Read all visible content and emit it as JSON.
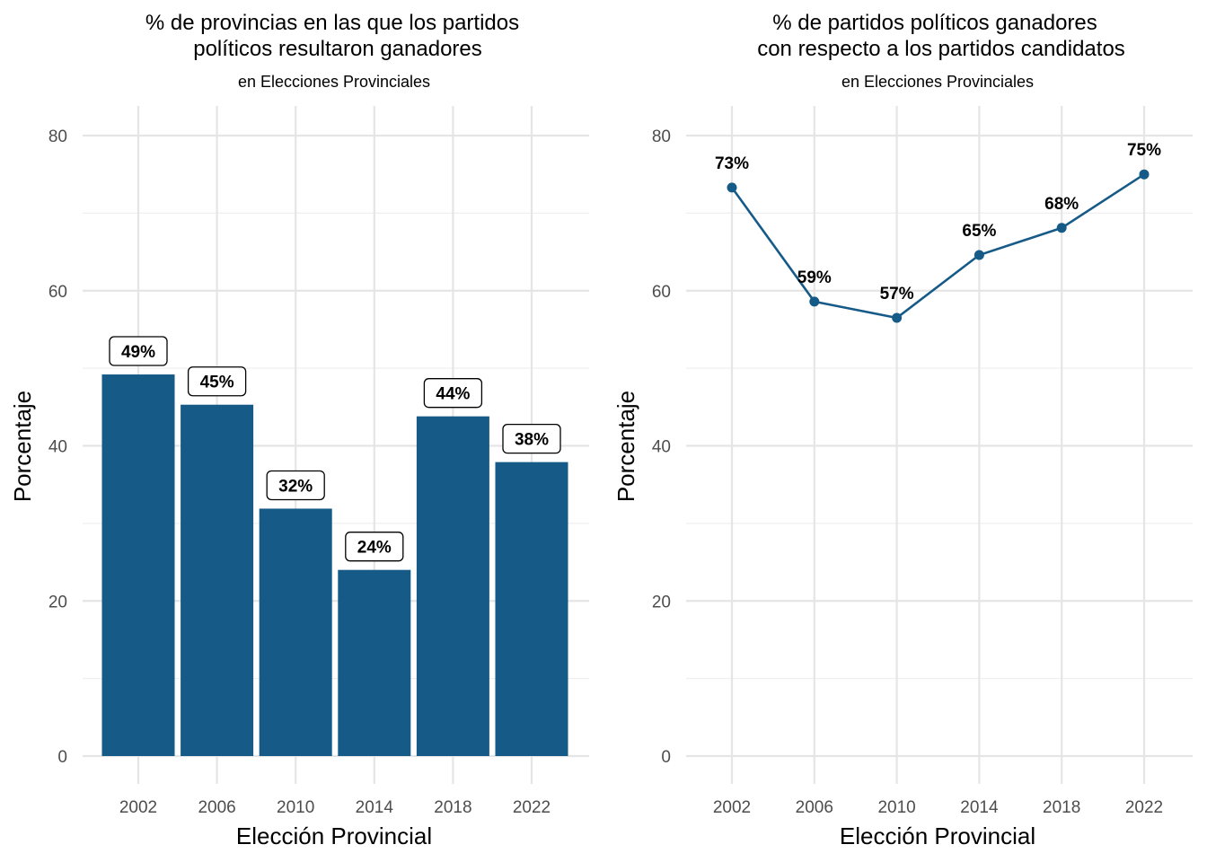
{
  "chart_data": [
    {
      "type": "bar",
      "title": "% de provincias en las que los partidos",
      "title_line2": "políticos resultaron ganadores",
      "subtitle": "en Elecciones Provinciales",
      "xlabel": "Elección Provincial",
      "ylabel": "Porcentaje",
      "categories": [
        "2002",
        "2006",
        "2010",
        "2014",
        "2018",
        "2022"
      ],
      "values": [
        49.2,
        45.3,
        31.9,
        24.0,
        43.8,
        37.9
      ],
      "labels": [
        "49%",
        "45%",
        "32%",
        "24%",
        "44%",
        "38%"
      ],
      "ylim": [
        0,
        80
      ],
      "yticks": [
        "0",
        "20",
        "40",
        "60",
        "80"
      ],
      "grid": true,
      "bar_color": "#165a88"
    },
    {
      "type": "line",
      "title": "% de partidos políticos ganadores",
      "title_line2": "con respecto a los partidos candidatos",
      "subtitle": "en Elecciones Provinciales",
      "xlabel": "Elección Provincial",
      "ylabel": "Porcentaje",
      "categories": [
        "2002",
        "2006",
        "2010",
        "2014",
        "2018",
        "2022"
      ],
      "values": [
        73.3,
        58.6,
        56.5,
        64.6,
        68.1,
        75.0
      ],
      "labels": [
        "73%",
        "59%",
        "57%",
        "65%",
        "68%",
        "75%"
      ],
      "ylim": [
        0,
        80
      ],
      "yticks": [
        "0",
        "20",
        "40",
        "60",
        "80"
      ],
      "grid": true,
      "line_color": "#165a88"
    }
  ]
}
